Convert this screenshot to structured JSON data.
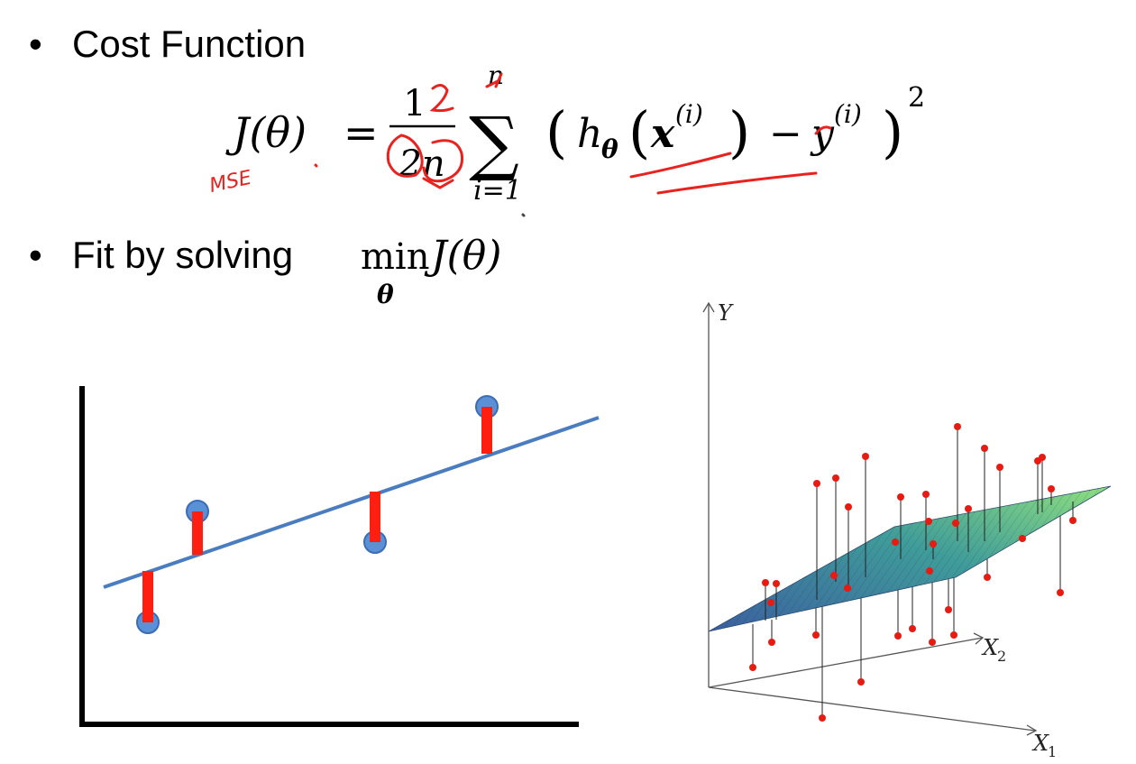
{
  "slide": {
    "bullet1": "Cost Function",
    "bullet2": "Fit by solving",
    "bullet_glyph": "•"
  },
  "equation": {
    "lhs": "J(θ)",
    "equals": "=",
    "numerator": "1",
    "denominator": "2n",
    "sum_top": "n",
    "sum_bottom": "i=1",
    "sum_symbol": "∑",
    "lparen": "(",
    "h": "h",
    "h_sub": "θ",
    "x": "x",
    "x_sup": "(i)",
    "minus": "−",
    "y": "y",
    "y_sup": "(i)",
    "rparen": ")",
    "power": "2"
  },
  "minimize": {
    "op": "min",
    "sub": "θ",
    "expr": "J(θ)"
  },
  "annotation": {
    "handwritten": "MSE",
    "ink_color": "#e8231f"
  },
  "plot3d": {
    "y_label": "Y",
    "x2_label": "X",
    "x2_sub": "2",
    "x1_label": "X",
    "x1_sub": "1"
  },
  "colors": {
    "point_blue": "#5b8fd6",
    "point_edge": "#3a6db5",
    "line_blue": "#4a7cc0",
    "residual_red": "#ff1f10",
    "dot_red": "#e81b12",
    "plane_start": "#3b5fa0",
    "plane_end": "#7fd68c"
  }
}
